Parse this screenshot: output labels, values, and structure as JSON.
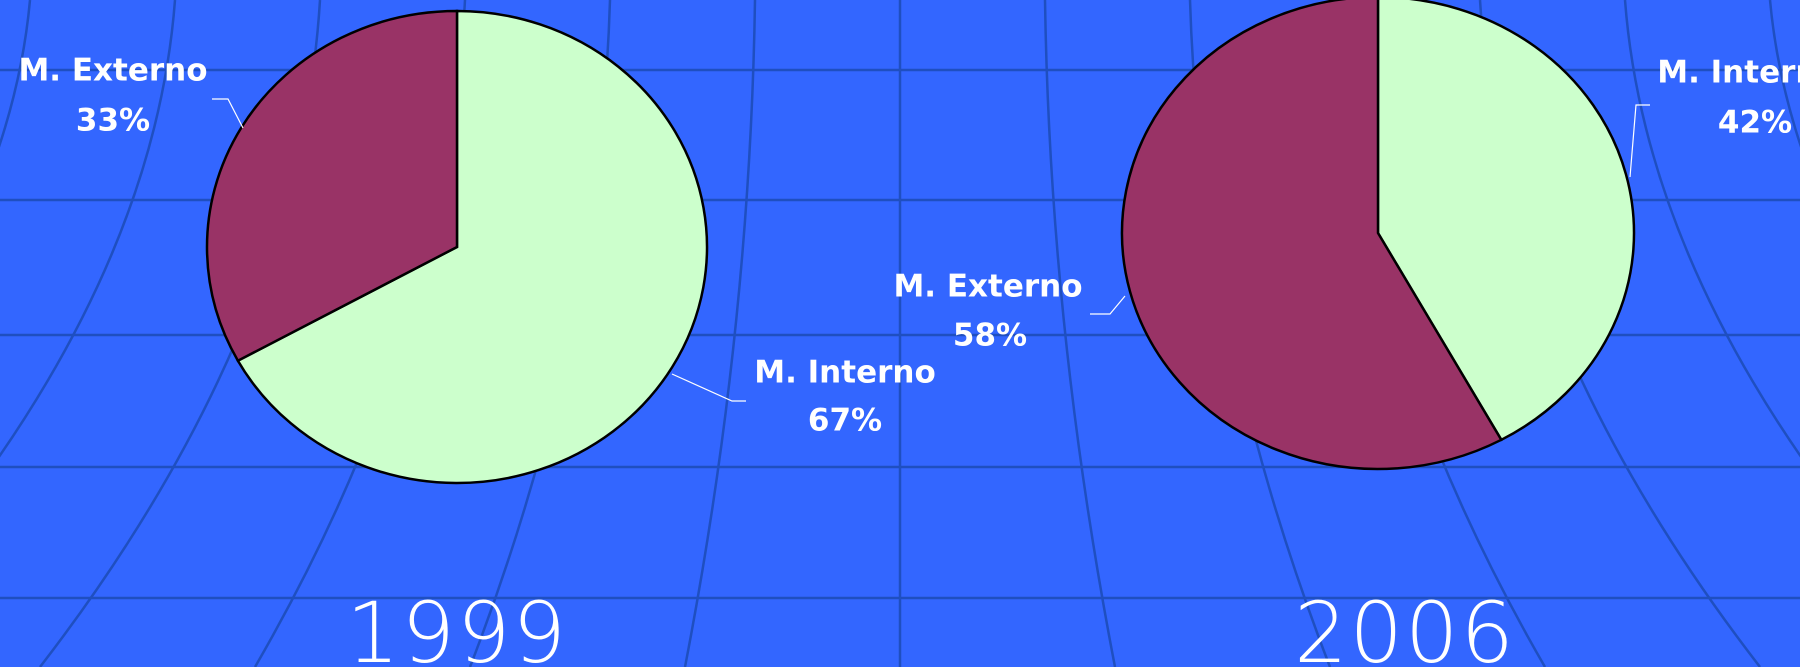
{
  "chart_data": [
    {
      "type": "pie",
      "title": "1999",
      "categories": [
        "M. Interno",
        "M. Externo"
      ],
      "values": [
        67,
        33
      ],
      "value_labels": [
        "67%",
        "33%"
      ],
      "colors": [
        "#ccffcc",
        "#993366"
      ]
    },
    {
      "type": "pie",
      "title": "2006",
      "categories": [
        "M. Interno",
        "M. Externo"
      ],
      "values": [
        42,
        58
      ],
      "value_labels": [
        "42%",
        "58%"
      ],
      "colors": [
        "#ccffcc",
        "#993366"
      ]
    }
  ]
}
